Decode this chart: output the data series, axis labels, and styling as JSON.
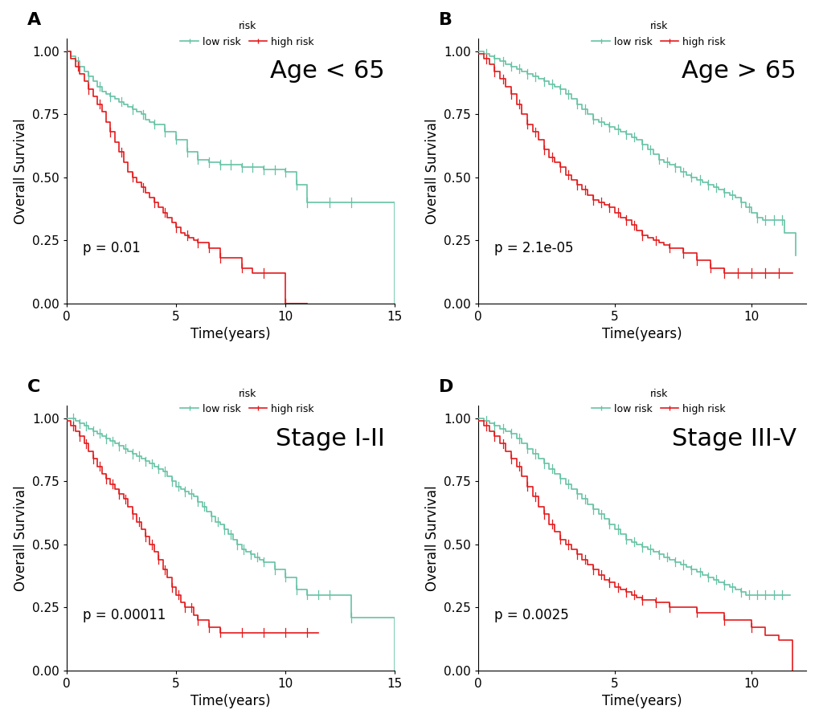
{
  "panels": [
    {
      "label": "A",
      "title": "Age < 65",
      "pvalue": "p = 0.01",
      "xlim": [
        0,
        15
      ],
      "ylim": [
        0,
        1.05
      ],
      "xticks": [
        0,
        5,
        10,
        15
      ],
      "low_risk_times": [
        0,
        0.2,
        0.4,
        0.6,
        0.8,
        1.0,
        1.2,
        1.4,
        1.6,
        1.8,
        2.0,
        2.2,
        2.4,
        2.6,
        2.8,
        3.0,
        3.2,
        3.4,
        3.6,
        3.8,
        4.0,
        4.5,
        5.0,
        5.5,
        6.0,
        6.5,
        7.0,
        7.5,
        8.0,
        8.5,
        9.0,
        9.5,
        10.0,
        10.5,
        11.0,
        11.5,
        12.0,
        13.0,
        14.0,
        14.5,
        15.0
      ],
      "low_risk_surv": [
        1.0,
        0.98,
        0.96,
        0.94,
        0.92,
        0.9,
        0.88,
        0.86,
        0.84,
        0.83,
        0.82,
        0.81,
        0.8,
        0.79,
        0.78,
        0.77,
        0.76,
        0.75,
        0.73,
        0.72,
        0.71,
        0.68,
        0.65,
        0.6,
        0.57,
        0.56,
        0.55,
        0.55,
        0.54,
        0.54,
        0.53,
        0.53,
        0.52,
        0.47,
        0.4,
        0.4,
        0.4,
        0.4,
        0.4,
        0.4,
        0.0
      ],
      "low_risk_censor_t": [
        0.5,
        1.0,
        1.5,
        2.0,
        2.5,
        3.0,
        3.5,
        4.0,
        4.5,
        5.0,
        5.5,
        6.0,
        6.5,
        7.0,
        7.5,
        8.0,
        8.5,
        9.0,
        9.5,
        10.0,
        10.5,
        11.0,
        12.0,
        13.0
      ],
      "high_risk_times": [
        0,
        0.2,
        0.4,
        0.6,
        0.8,
        1.0,
        1.2,
        1.4,
        1.6,
        1.8,
        2.0,
        2.2,
        2.4,
        2.6,
        2.8,
        3.0,
        3.2,
        3.4,
        3.6,
        3.8,
        4.0,
        4.2,
        4.4,
        4.6,
        4.8,
        5.0,
        5.2,
        5.4,
        5.6,
        5.8,
        6.0,
        6.5,
        7.0,
        8.0,
        8.5,
        9.0,
        9.5,
        10.0,
        10.5,
        11.0
      ],
      "high_risk_surv": [
        1.0,
        0.97,
        0.94,
        0.91,
        0.88,
        0.85,
        0.82,
        0.79,
        0.76,
        0.72,
        0.68,
        0.64,
        0.6,
        0.56,
        0.52,
        0.5,
        0.48,
        0.46,
        0.44,
        0.42,
        0.4,
        0.38,
        0.36,
        0.34,
        0.32,
        0.3,
        0.28,
        0.27,
        0.26,
        0.25,
        0.24,
        0.22,
        0.18,
        0.14,
        0.12,
        0.12,
        0.12,
        0.0,
        0.0,
        0.0
      ],
      "high_risk_censor_t": [
        0.5,
        1.0,
        1.5,
        2.0,
        2.5,
        3.0,
        3.5,
        4.0,
        4.5,
        5.0,
        5.5,
        6.0,
        6.5,
        7.0,
        8.0,
        9.0,
        10.0
      ]
    },
    {
      "label": "B",
      "title": "Age > 65",
      "pvalue": "p = 2.1e-05",
      "xlim": [
        0,
        12
      ],
      "ylim": [
        0,
        1.05
      ],
      "xticks": [
        0,
        5,
        10
      ],
      "low_risk_times": [
        0,
        0.2,
        0.4,
        0.6,
        0.8,
        1.0,
        1.2,
        1.4,
        1.6,
        1.8,
        2.0,
        2.2,
        2.4,
        2.6,
        2.8,
        3.0,
        3.2,
        3.4,
        3.6,
        3.8,
        4.0,
        4.2,
        4.4,
        4.6,
        4.8,
        5.0,
        5.2,
        5.4,
        5.6,
        5.8,
        6.0,
        6.2,
        6.4,
        6.6,
        6.8,
        7.0,
        7.2,
        7.4,
        7.6,
        7.8,
        8.0,
        8.2,
        8.4,
        8.6,
        8.8,
        9.0,
        9.2,
        9.4,
        9.6,
        9.8,
        10.0,
        10.2,
        10.4,
        10.6,
        10.8,
        11.0,
        11.2,
        11.6
      ],
      "low_risk_surv": [
        1.0,
        0.99,
        0.98,
        0.97,
        0.96,
        0.95,
        0.94,
        0.93,
        0.92,
        0.91,
        0.9,
        0.89,
        0.88,
        0.87,
        0.86,
        0.85,
        0.83,
        0.81,
        0.79,
        0.77,
        0.75,
        0.73,
        0.72,
        0.71,
        0.7,
        0.69,
        0.68,
        0.67,
        0.66,
        0.65,
        0.63,
        0.61,
        0.59,
        0.57,
        0.56,
        0.55,
        0.54,
        0.52,
        0.51,
        0.5,
        0.49,
        0.48,
        0.47,
        0.46,
        0.45,
        0.44,
        0.43,
        0.42,
        0.4,
        0.38,
        0.36,
        0.34,
        0.33,
        0.33,
        0.33,
        0.33,
        0.28,
        0.19
      ],
      "low_risk_censor_t": [
        0.3,
        0.6,
        0.9,
        1.2,
        1.5,
        1.8,
        2.1,
        2.4,
        2.7,
        3.0,
        3.3,
        3.6,
        3.9,
        4.2,
        4.5,
        4.8,
        5.1,
        5.4,
        5.7,
        6.0,
        6.3,
        6.6,
        6.9,
        7.2,
        7.5,
        7.8,
        8.1,
        8.4,
        8.7,
        9.0,
        9.3,
        9.6,
        9.9,
        10.2,
        10.5,
        10.8,
        11.1
      ],
      "high_risk_times": [
        0,
        0.2,
        0.4,
        0.6,
        0.8,
        1.0,
        1.2,
        1.4,
        1.6,
        1.8,
        2.0,
        2.2,
        2.4,
        2.6,
        2.8,
        3.0,
        3.2,
        3.4,
        3.6,
        3.8,
        4.0,
        4.2,
        4.4,
        4.6,
        4.8,
        5.0,
        5.2,
        5.4,
        5.6,
        5.8,
        6.0,
        6.2,
        6.4,
        6.6,
        6.8,
        7.0,
        7.5,
        8.0,
        8.5,
        9.0,
        9.5,
        10.0,
        10.5,
        11.0,
        11.5
      ],
      "high_risk_surv": [
        0.99,
        0.97,
        0.95,
        0.92,
        0.89,
        0.86,
        0.83,
        0.79,
        0.75,
        0.71,
        0.68,
        0.65,
        0.61,
        0.58,
        0.56,
        0.54,
        0.51,
        0.49,
        0.47,
        0.45,
        0.43,
        0.41,
        0.4,
        0.39,
        0.38,
        0.36,
        0.34,
        0.33,
        0.31,
        0.29,
        0.27,
        0.26,
        0.25,
        0.24,
        0.23,
        0.22,
        0.2,
        0.17,
        0.14,
        0.12,
        0.12,
        0.12,
        0.12,
        0.12,
        0.12
      ],
      "high_risk_censor_t": [
        0.3,
        0.6,
        0.9,
        1.2,
        1.5,
        1.8,
        2.1,
        2.4,
        2.7,
        3.0,
        3.3,
        3.6,
        3.9,
        4.2,
        4.5,
        4.8,
        5.1,
        5.4,
        5.7,
        6.0,
        6.5,
        7.0,
        7.5,
        8.0,
        8.5,
        9.0,
        9.5,
        10.0,
        10.5,
        11.0
      ]
    },
    {
      "label": "C",
      "title": "Stage I-II",
      "pvalue": "p = 0.00011",
      "xlim": [
        0,
        15
      ],
      "ylim": [
        0,
        1.05
      ],
      "xticks": [
        0,
        5,
        10,
        15
      ],
      "low_risk_times": [
        0,
        0.2,
        0.4,
        0.6,
        0.8,
        1.0,
        1.2,
        1.4,
        1.6,
        1.8,
        2.0,
        2.2,
        2.4,
        2.6,
        2.8,
        3.0,
        3.2,
        3.4,
        3.6,
        3.8,
        4.0,
        4.2,
        4.4,
        4.6,
        4.8,
        5.0,
        5.2,
        5.4,
        5.6,
        5.8,
        6.0,
        6.2,
        6.4,
        6.6,
        6.8,
        7.0,
        7.2,
        7.4,
        7.6,
        7.8,
        8.0,
        8.2,
        8.4,
        8.6,
        8.8,
        9.0,
        9.5,
        10.0,
        10.5,
        11.0,
        11.5,
        12.0,
        13.0,
        14.0,
        14.5,
        15.0
      ],
      "low_risk_surv": [
        1.0,
        1.0,
        0.99,
        0.98,
        0.97,
        0.96,
        0.95,
        0.94,
        0.93,
        0.92,
        0.91,
        0.9,
        0.89,
        0.88,
        0.87,
        0.86,
        0.85,
        0.84,
        0.83,
        0.82,
        0.81,
        0.8,
        0.79,
        0.77,
        0.75,
        0.73,
        0.72,
        0.71,
        0.7,
        0.69,
        0.67,
        0.65,
        0.63,
        0.61,
        0.59,
        0.58,
        0.56,
        0.54,
        0.52,
        0.5,
        0.48,
        0.47,
        0.46,
        0.45,
        0.44,
        0.43,
        0.4,
        0.37,
        0.32,
        0.3,
        0.3,
        0.3,
        0.21,
        0.21,
        0.21,
        0.0
      ],
      "low_risk_censor_t": [
        0.3,
        0.6,
        0.9,
        1.2,
        1.5,
        1.8,
        2.1,
        2.4,
        2.7,
        3.0,
        3.3,
        3.6,
        3.9,
        4.2,
        4.5,
        4.8,
        5.1,
        5.4,
        5.7,
        6.0,
        6.3,
        6.6,
        6.9,
        7.2,
        7.5,
        7.8,
        8.1,
        8.4,
        8.7,
        9.0,
        9.5,
        10.0,
        10.5,
        11.0,
        11.5,
        12.0,
        13.0
      ],
      "high_risk_times": [
        0,
        0.2,
        0.4,
        0.6,
        0.8,
        1.0,
        1.2,
        1.4,
        1.6,
        1.8,
        2.0,
        2.2,
        2.4,
        2.6,
        2.8,
        3.0,
        3.2,
        3.4,
        3.6,
        3.8,
        4.0,
        4.2,
        4.4,
        4.6,
        4.8,
        5.0,
        5.2,
        5.4,
        5.8,
        6.0,
        6.5,
        7.0,
        8.0,
        9.0,
        10.0,
        11.0,
        11.5
      ],
      "high_risk_surv": [
        0.99,
        0.97,
        0.95,
        0.93,
        0.9,
        0.87,
        0.84,
        0.81,
        0.78,
        0.76,
        0.74,
        0.72,
        0.7,
        0.68,
        0.65,
        0.62,
        0.59,
        0.56,
        0.53,
        0.5,
        0.47,
        0.44,
        0.4,
        0.37,
        0.33,
        0.3,
        0.27,
        0.25,
        0.22,
        0.2,
        0.17,
        0.15,
        0.15,
        0.15,
        0.15,
        0.15,
        0.15
      ],
      "high_risk_censor_t": [
        0.3,
        0.6,
        0.9,
        1.2,
        1.5,
        1.8,
        2.1,
        2.4,
        2.7,
        3.0,
        3.3,
        3.6,
        3.9,
        4.2,
        4.5,
        4.8,
        5.1,
        5.4,
        5.7,
        6.0,
        6.5,
        7.0,
        8.0,
        9.0,
        10.0,
        11.0
      ]
    },
    {
      "label": "D",
      "title": "Stage III-V",
      "pvalue": "p = 0.0025",
      "xlim": [
        0,
        12
      ],
      "ylim": [
        0,
        1.05
      ],
      "xticks": [
        0,
        5,
        10
      ],
      "low_risk_times": [
        0,
        0.2,
        0.4,
        0.6,
        0.8,
        1.0,
        1.2,
        1.4,
        1.6,
        1.8,
        2.0,
        2.2,
        2.4,
        2.6,
        2.8,
        3.0,
        3.2,
        3.4,
        3.6,
        3.8,
        4.0,
        4.2,
        4.4,
        4.6,
        4.8,
        5.0,
        5.2,
        5.4,
        5.6,
        5.8,
        6.0,
        6.2,
        6.4,
        6.6,
        6.8,
        7.0,
        7.2,
        7.4,
        7.6,
        7.8,
        8.0,
        8.2,
        8.4,
        8.6,
        8.8,
        9.0,
        9.2,
        9.4,
        9.6,
        9.8,
        10.0,
        10.2,
        10.4,
        10.6,
        10.8,
        11.0,
        11.2,
        11.4
      ],
      "low_risk_surv": [
        1.0,
        0.99,
        0.98,
        0.97,
        0.96,
        0.95,
        0.94,
        0.92,
        0.9,
        0.88,
        0.86,
        0.84,
        0.82,
        0.8,
        0.78,
        0.76,
        0.74,
        0.72,
        0.7,
        0.68,
        0.66,
        0.64,
        0.62,
        0.6,
        0.58,
        0.56,
        0.54,
        0.52,
        0.51,
        0.5,
        0.49,
        0.48,
        0.47,
        0.46,
        0.45,
        0.44,
        0.43,
        0.42,
        0.41,
        0.4,
        0.39,
        0.38,
        0.37,
        0.36,
        0.35,
        0.34,
        0.33,
        0.32,
        0.31,
        0.3,
        0.3,
        0.3,
        0.3,
        0.3,
        0.3,
        0.3,
        0.3,
        0.3
      ],
      "low_risk_censor_t": [
        0.3,
        0.6,
        0.9,
        1.2,
        1.5,
        1.8,
        2.1,
        2.4,
        2.7,
        3.0,
        3.3,
        3.6,
        3.9,
        4.2,
        4.5,
        4.8,
        5.1,
        5.4,
        5.7,
        6.0,
        6.3,
        6.6,
        6.9,
        7.2,
        7.5,
        7.8,
        8.1,
        8.4,
        8.7,
        9.0,
        9.3,
        9.6,
        9.9,
        10.2,
        10.5,
        10.8,
        11.1
      ],
      "high_risk_times": [
        0,
        0.2,
        0.4,
        0.6,
        0.8,
        1.0,
        1.2,
        1.4,
        1.6,
        1.8,
        2.0,
        2.2,
        2.4,
        2.6,
        2.8,
        3.0,
        3.2,
        3.4,
        3.6,
        3.8,
        4.0,
        4.2,
        4.4,
        4.6,
        4.8,
        5.0,
        5.2,
        5.4,
        5.6,
        5.8,
        6.0,
        6.5,
        7.0,
        8.0,
        9.0,
        10.0,
        10.5,
        11.0,
        11.5
      ],
      "high_risk_surv": [
        0.99,
        0.97,
        0.95,
        0.93,
        0.9,
        0.87,
        0.84,
        0.81,
        0.77,
        0.73,
        0.69,
        0.65,
        0.62,
        0.58,
        0.55,
        0.52,
        0.5,
        0.48,
        0.46,
        0.44,
        0.42,
        0.4,
        0.38,
        0.36,
        0.35,
        0.33,
        0.32,
        0.31,
        0.3,
        0.29,
        0.28,
        0.27,
        0.25,
        0.23,
        0.2,
        0.17,
        0.14,
        0.12,
        0.0
      ],
      "high_risk_censor_t": [
        0.3,
        0.6,
        0.9,
        1.2,
        1.5,
        1.8,
        2.1,
        2.4,
        2.7,
        3.0,
        3.3,
        3.6,
        3.9,
        4.2,
        4.5,
        4.8,
        5.1,
        5.4,
        5.7,
        6.0,
        6.5,
        7.0,
        8.0,
        9.0,
        10.0
      ]
    }
  ],
  "low_risk_color": "#66C2A5",
  "high_risk_color": "#E31A1C",
  "ylabel": "Overall Survival",
  "xlabel": "Time(years)",
  "yticks": [
    0.0,
    0.25,
    0.5,
    0.75,
    1.0
  ],
  "background_color": "#FFFFFF",
  "title_fontsize": 22,
  "label_fontsize": 12,
  "tick_fontsize": 11,
  "pvalue_fontsize": 12,
  "legend_fontsize": 9,
  "panel_label_fontsize": 16
}
